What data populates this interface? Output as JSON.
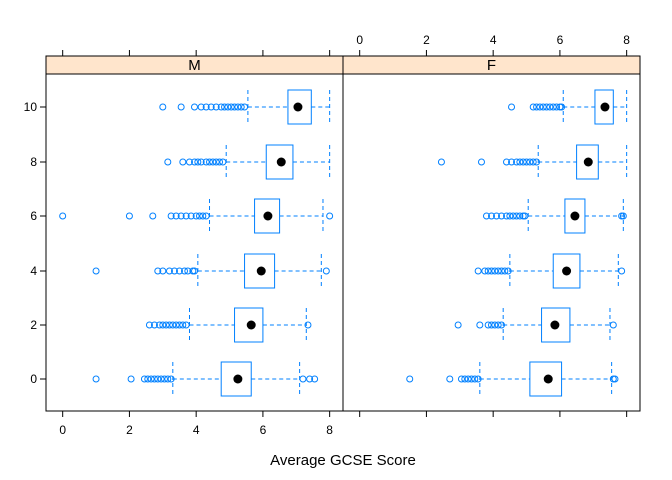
{
  "chart_data": {
    "type": "boxplot",
    "xlabel": "Average GCSE Score",
    "xlim": [
      -0.5,
      8.4
    ],
    "x_ticks": [
      0,
      2,
      4,
      6,
      8
    ],
    "y_categories": [
      "0",
      "2",
      "4",
      "6",
      "8",
      "10"
    ],
    "colors": {
      "box": "#0080ff",
      "median": "#000000",
      "strip": "#ffe5cc",
      "frame": "#000000"
    },
    "panels": [
      {
        "name": "M",
        "series": [
          {
            "category": "0",
            "lower_whisker": 3.3,
            "q1": 4.75,
            "median": 5.25,
            "q3": 5.65,
            "upper_whisker": 7.1,
            "outliers": [
              1.0,
              2.05,
              2.45,
              2.55,
              2.65,
              2.75,
              2.85,
              2.95,
              3.05,
              3.15,
              3.25,
              7.2,
              7.4,
              7.55
            ]
          },
          {
            "category": "2",
            "lower_whisker": 3.8,
            "q1": 5.15,
            "median": 5.65,
            "q3": 6.0,
            "upper_whisker": 7.3,
            "outliers": [
              2.6,
              2.75,
              2.9,
              3.0,
              3.1,
              3.2,
              3.3,
              3.4,
              3.5,
              3.6,
              3.7,
              7.35
            ]
          },
          {
            "category": "4",
            "lower_whisker": 4.05,
            "q1": 5.45,
            "median": 5.95,
            "q3": 6.35,
            "upper_whisker": 7.75,
            "outliers": [
              1.0,
              2.85,
              3.0,
              3.2,
              3.35,
              3.5,
              3.65,
              3.75,
              3.9,
              3.95,
              7.9
            ]
          },
          {
            "category": "6",
            "lower_whisker": 4.4,
            "q1": 5.75,
            "median": 6.15,
            "q3": 6.5,
            "upper_whisker": 7.8,
            "outliers": [
              0.0,
              2.0,
              2.7,
              3.25,
              3.4,
              3.55,
              3.7,
              3.85,
              4.0,
              4.1,
              4.2,
              4.3,
              8.0
            ]
          },
          {
            "category": "8",
            "lower_whisker": 4.9,
            "q1": 6.1,
            "median": 6.55,
            "q3": 6.9,
            "upper_whisker": 8.0,
            "outliers": [
              3.15,
              3.6,
              3.8,
              3.95,
              4.05,
              4.15,
              4.3,
              4.4,
              4.5,
              4.6,
              4.7,
              4.8
            ]
          },
          {
            "category": "10",
            "lower_whisker": 5.55,
            "q1": 6.75,
            "median": 7.05,
            "q3": 7.45,
            "upper_whisker": 8.0,
            "outliers": [
              3.0,
              3.55,
              3.95,
              4.15,
              4.3,
              4.45,
              4.6,
              4.75,
              4.85,
              4.95,
              5.05,
              5.15,
              5.25,
              5.35,
              5.45
            ]
          }
        ]
      },
      {
        "name": "F",
        "series": [
          {
            "category": "0",
            "lower_whisker": 3.6,
            "q1": 5.1,
            "median": 5.65,
            "q3": 6.05,
            "upper_whisker": 7.55,
            "outliers": [
              1.5,
              2.7,
              3.05,
              3.15,
              3.25,
              3.35,
              3.45,
              3.55,
              7.6,
              7.65
            ]
          },
          {
            "category": "2",
            "lower_whisker": 4.3,
            "q1": 5.45,
            "median": 5.85,
            "q3": 6.3,
            "upper_whisker": 7.5,
            "outliers": [
              2.95,
              3.6,
              3.85,
              3.95,
              4.05,
              4.15,
              4.25,
              7.6
            ]
          },
          {
            "category": "4",
            "lower_whisker": 4.5,
            "q1": 5.8,
            "median": 6.2,
            "q3": 6.6,
            "upper_whisker": 7.75,
            "outliers": [
              3.55,
              3.75,
              3.85,
              3.95,
              4.05,
              4.15,
              4.25,
              4.35,
              4.45,
              7.85
            ]
          },
          {
            "category": "6",
            "lower_whisker": 5.05,
            "q1": 6.15,
            "median": 6.45,
            "q3": 6.75,
            "upper_whisker": 7.9,
            "outliers": [
              3.8,
              3.95,
              4.1,
              4.25,
              4.4,
              4.5,
              4.6,
              4.7,
              4.8,
              4.9,
              4.95,
              7.85,
              7.9
            ]
          },
          {
            "category": "8",
            "lower_whisker": 5.35,
            "q1": 6.5,
            "median": 6.85,
            "q3": 7.15,
            "upper_whisker": 8.0,
            "outliers": [
              2.45,
              3.65,
              4.4,
              4.55,
              4.7,
              4.8,
              4.9,
              5.0,
              5.1,
              5.2,
              5.3
            ]
          },
          {
            "category": "10",
            "lower_whisker": 6.1,
            "q1": 7.05,
            "median": 7.35,
            "q3": 7.6,
            "upper_whisker": 8.0,
            "outliers": [
              4.55,
              5.2,
              5.3,
              5.4,
              5.5,
              5.6,
              5.7,
              5.8,
              5.9,
              6.0,
              6.05
            ]
          }
        ]
      }
    ]
  }
}
